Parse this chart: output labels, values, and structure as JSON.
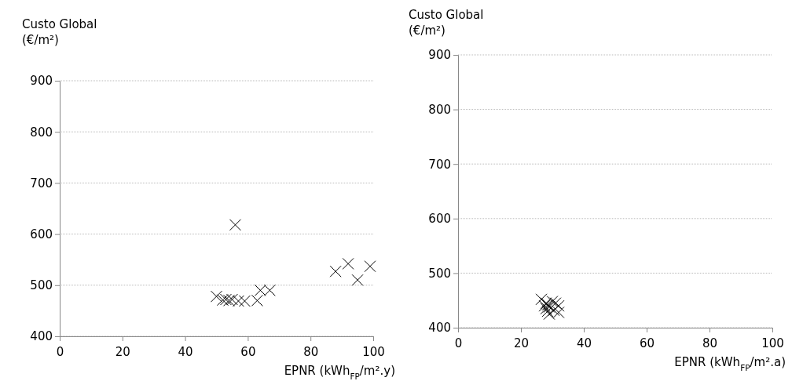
{
  "chart_data": [
    {
      "type": "scatter",
      "xlabel": "EPNR (kWh$_{FP}$/m².y)",
      "ylabel": "Custo Global (€/m²)",
      "xlim": [
        0,
        100
      ],
      "ylim": [
        400,
        900
      ],
      "xticks": [
        0,
        20,
        40,
        60,
        80,
        100
      ],
      "yticks": [
        400,
        500,
        600,
        700,
        800,
        900
      ],
      "grid": "y",
      "marker": "cross",
      "series": [
        {
          "color": "#000000",
          "x": [
            50,
            52,
            53,
            54,
            55,
            57,
            59,
            63,
            64,
            67,
            56,
            88,
            92,
            95,
            99
          ],
          "values": [
            478,
            471,
            472,
            470,
            472,
            469,
            469,
            470,
            490,
            490,
            618,
            527,
            542,
            510,
            537
          ]
        }
      ]
    },
    {
      "type": "scatter",
      "xlabel": "EPNR (kWh$_{FP}$/m².a)",
      "ylabel": "Custo Global (€/m²)",
      "xlim": [
        0,
        100
      ],
      "ylim": [
        400,
        900
      ],
      "xticks": [
        0,
        20,
        40,
        60,
        80,
        100
      ],
      "yticks": [
        400,
        500,
        600,
        700,
        800,
        900
      ],
      "grid": "y",
      "marker": "cross",
      "series": [
        {
          "color": "#000000",
          "x": [
            26.5,
            27.5,
            28,
            28,
            28.5,
            29,
            29,
            30,
            30.5,
            31,
            32,
            32,
            28.5
          ],
          "values": [
            452,
            440,
            445,
            435,
            430,
            438,
            425,
            448,
            432,
            445,
            440,
            428,
            442
          ]
        }
      ]
    }
  ]
}
